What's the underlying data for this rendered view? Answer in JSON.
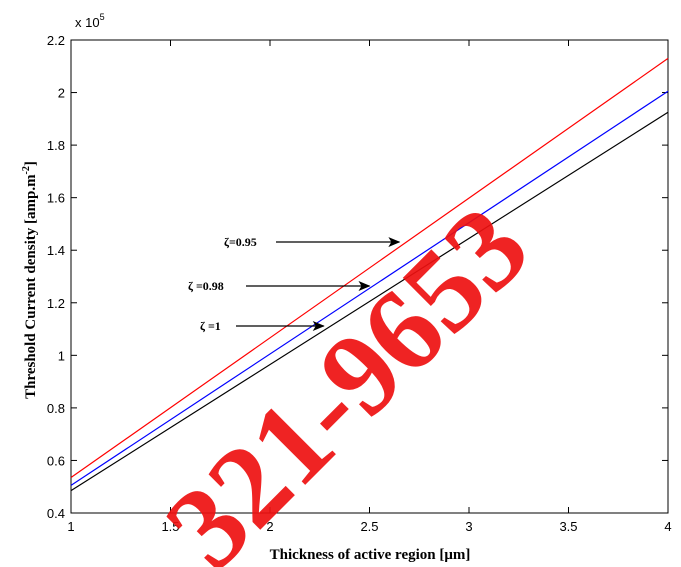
{
  "chart_data": {
    "type": "line",
    "title": "",
    "xlabel": "Thickness of active region [μm]",
    "ylabel": "Threshold Current density [amp.m",
    "ylabel_sup": "-2",
    "ylabel_end": "]",
    "y_multiplier": "x 10",
    "y_multiplier_exp": "5",
    "xlim": [
      1,
      4
    ],
    "ylim": [
      0.4,
      2.2
    ],
    "xticks": [
      "1",
      "1.5",
      "2",
      "2.5",
      "3",
      "3.5",
      "4"
    ],
    "yticks": [
      "0.4",
      "0.6",
      "0.8",
      "1",
      "1.2",
      "1.4",
      "1.6",
      "1.8",
      "2",
      "2.2"
    ],
    "grid": false,
    "series": [
      {
        "name": "ζ=0.95",
        "color": "#ff0000",
        "x": [
          1,
          4
        ],
        "y": [
          0.535,
          2.13
        ]
      },
      {
        "name": "ζ =0.98",
        "color": "#0000ff",
        "x": [
          1,
          4
        ],
        "y": [
          0.505,
          2.005
        ]
      },
      {
        "name": "ζ =1",
        "color": "#000000",
        "x": [
          1,
          4
        ],
        "y": [
          0.485,
          1.925
        ]
      }
    ],
    "annotations": [
      {
        "label": "ζ=0.95",
        "target_x": 2.65,
        "target_y": 1.42
      },
      {
        "label": "ζ =0.98",
        "target_x": 2.5,
        "target_y": 1.265
      },
      {
        "label": "ζ =1",
        "target_x": 2.27,
        "target_y": 1.105
      }
    ],
    "watermark": "321-9653"
  }
}
